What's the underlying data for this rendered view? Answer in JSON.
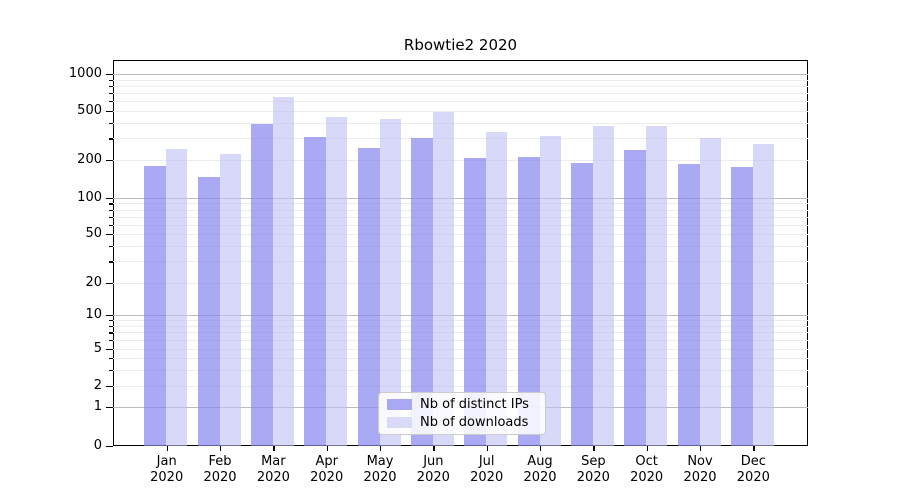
{
  "title": "Rbowtie2 2020",
  "chart_data": {
    "type": "bar",
    "title": "Rbowtie2 2020",
    "categories": [
      "Jan",
      "Feb",
      "Mar",
      "Apr",
      "May",
      "Jun",
      "Jul",
      "Aug",
      "Sep",
      "Oct",
      "Nov",
      "Dec"
    ],
    "year_label": "2020",
    "series": [
      {
        "name": "Nb of distinct IPs",
        "color": "#a8a8f3",
        "values": [
          180,
          148,
          395,
          310,
          248,
          300,
          207,
          210,
          190,
          240,
          185,
          177
        ]
      },
      {
        "name": "Nb of downloads",
        "color": "#d9d9f8",
        "values": [
          245,
          222,
          645,
          450,
          430,
          490,
          335,
          316,
          380,
          380,
          300,
          270
        ]
      }
    ],
    "y_axis": {
      "scale": "log-like (linear below 1)",
      "tick_labels": [
        "0",
        "1",
        "2",
        "5",
        "10",
        "20",
        "50",
        "100",
        "200",
        "500",
        "1000"
      ],
      "tick_values": [
        0,
        1,
        2,
        5,
        10,
        20,
        50,
        100,
        200,
        500,
        1000
      ],
      "range": [
        0,
        1300
      ],
      "major_grid_values": [
        1,
        10,
        100,
        1000
      ],
      "grid": true
    },
    "x_axis": {
      "label_line2": "2020"
    },
    "legend": {
      "position": "bottom-center",
      "entries": [
        "Nb of distinct IPs",
        "Nb of downloads"
      ]
    },
    "colors": {
      "ips_bar": "#a8a8f3",
      "downloads_bar": "#d9d9f8",
      "major_grid": "#bdbdbd",
      "minor_grid": "#ececec"
    }
  }
}
